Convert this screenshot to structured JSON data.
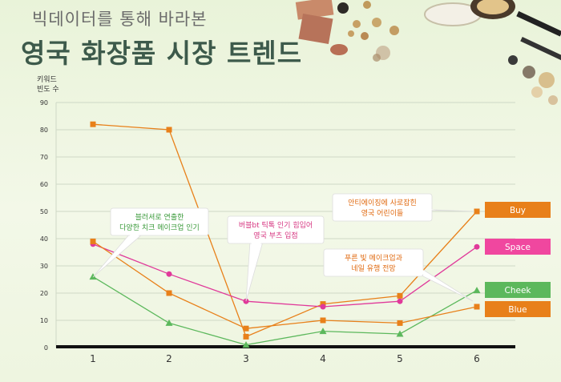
{
  "header": {
    "subtitle": "빅데이터를 통해 바라본",
    "title": "영국 화장품 시장 트렌드"
  },
  "chart_data": {
    "type": "line",
    "title": "영국 화장품 시장 트렌드",
    "ylabel_lines": [
      "키워드",
      "빈도 수"
    ],
    "xlabel": "",
    "x": [
      1,
      2,
      3,
      4,
      5,
      6
    ],
    "ylim": [
      0,
      90
    ],
    "yticks": [
      0,
      10,
      20,
      30,
      40,
      50,
      60,
      70,
      80,
      90
    ],
    "grid": true,
    "series": [
      {
        "name": "Buy",
        "color": "#e8801a",
        "marker": "square",
        "values": [
          82,
          80,
          4,
          16,
          19,
          50
        ]
      },
      {
        "name": "Space",
        "color": "#e0399a",
        "marker": "circle",
        "values": [
          38,
          27,
          17,
          15,
          17,
          37
        ]
      },
      {
        "name": "Cheek",
        "color": "#5cb85c",
        "marker": "triangle",
        "values": [
          26,
          9,
          1,
          6,
          5,
          21
        ]
      },
      {
        "name": "Blue",
        "color": "#e8801a",
        "marker": "square",
        "values": [
          39,
          20,
          7,
          10,
          9,
          15
        ]
      }
    ],
    "legend": [
      {
        "label": "Buy",
        "color": "#e8801a"
      },
      {
        "label": "Space",
        "color": "#f0479f"
      },
      {
        "label": "Cheek",
        "color": "#5cb85c"
      },
      {
        "label": "Blue",
        "color": "#e8801a"
      }
    ],
    "annotations": [
      {
        "lines": [
          "블러셔로 연출한",
          "다양한 치크 메이크업 인기"
        ],
        "color": "#3a9a3a"
      },
      {
        "lines": [
          "버블bt 틱톡 인기 힘입어",
          "영국 부츠 입점"
        ],
        "color": "#d6337f"
      },
      {
        "lines": [
          "안티에이징에 사로잡힌",
          "영국 어린이들"
        ],
        "color": "#e06a10"
      },
      {
        "lines": [
          "푸른 빛 메이크업과",
          "네일  유행 전망"
        ],
        "color": "#e06a10"
      }
    ]
  }
}
